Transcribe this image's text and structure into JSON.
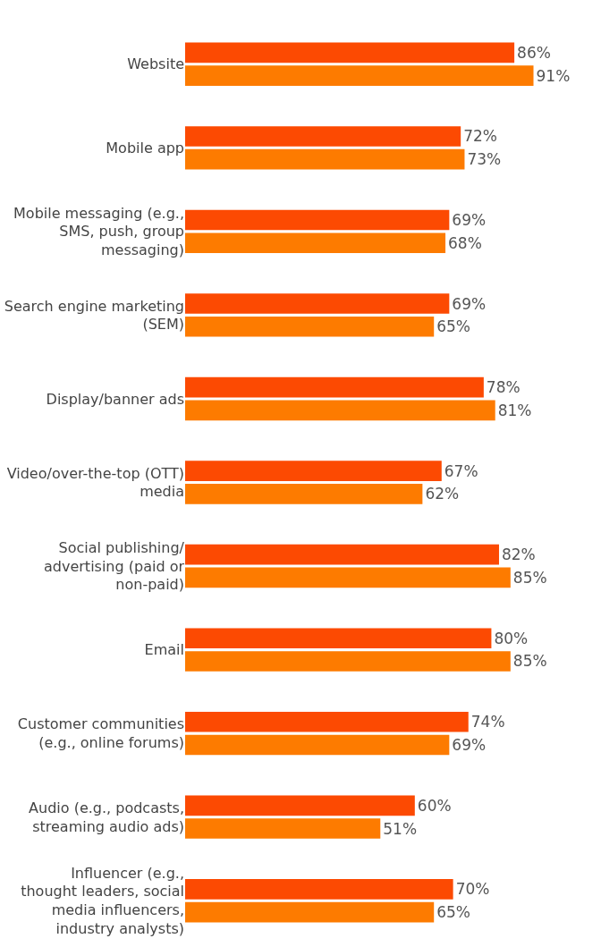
{
  "chart_data": {
    "type": "bar",
    "orientation": "horizontal",
    "tick_labels": "y",
    "categories": [
      "Website",
      "Mobile app",
      "Mobile messaging (e.g., SMS, push, group messaging)",
      "Search engine marketing (SEM)",
      "Display/banner ads",
      "Video/over-the-top (OTT) media",
      "Social publishing/ advertising (paid or non-paid)",
      "Email",
      "Customer communities (e.g., online forums)",
      "Audio (e.g., podcasts, streaming audio ads)",
      "Influencer (e.g., thought leaders, social media influencers, industry analysts)"
    ],
    "series": [
      {
        "color": "#fc4a02",
        "values": [
          86,
          72,
          69,
          69,
          78,
          67,
          82,
          80,
          74,
          60,
          70
        ],
        "value_labels": [
          "86%",
          "72%",
          "69%",
          "69%",
          "78%",
          "67%",
          "82%",
          "80%",
          "74%",
          "60%",
          "70%"
        ]
      },
      {
        "color": "#fd7b00",
        "values": [
          91,
          73,
          68,
          65,
          81,
          62,
          85,
          85,
          69,
          51,
          65
        ],
        "value_labels": [
          "91%",
          "73%",
          "68%",
          "65%",
          "81%",
          "62%",
          "85%",
          "85%",
          "69%",
          "51%",
          "65%"
        ]
      }
    ]
  }
}
